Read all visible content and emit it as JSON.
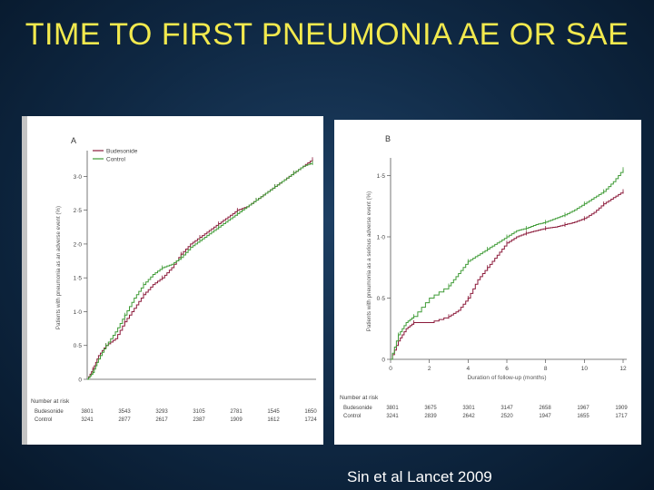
{
  "slide": {
    "title": "TIME TO FIRST PNEUMONIA AE  OR SAE",
    "citation": "Sin et al Lancet 2009"
  },
  "colors": {
    "budesonide": "#8b1a3a",
    "control": "#3f9b36",
    "title": "#f2e94e"
  },
  "chart_data": [
    {
      "type": "line",
      "panel_label": "A",
      "ylabel": "Patients with pneumonia as an adverse event (%)",
      "xlabel": "",
      "ylim": [
        0,
        3.3
      ],
      "yticks": [
        0,
        0.5,
        1.0,
        1.5,
        2.0,
        2.5,
        3.0
      ],
      "ytick_labels": [
        "0",
        "0·5",
        "1·0",
        "1·5",
        "2·0",
        "2·5",
        "3·0"
      ],
      "xlim": [
        0,
        12
      ],
      "legend": {
        "placement": "top-left",
        "entries": [
          "Budesonide",
          "Control"
        ]
      },
      "series": [
        {
          "name": "Budesonide",
          "x": [
            0,
            0.3,
            0.6,
            1,
            1.5,
            2,
            2.5,
            3,
            3.5,
            4,
            4.5,
            5,
            5.5,
            6,
            6.5,
            7,
            7.5,
            8,
            8.5,
            9,
            9.5,
            10,
            10.5,
            11,
            11.5,
            12
          ],
          "y": [
            0,
            0.15,
            0.35,
            0.5,
            0.6,
            0.85,
            1.05,
            1.25,
            1.4,
            1.5,
            1.65,
            1.85,
            2.0,
            2.1,
            2.2,
            2.3,
            2.4,
            2.5,
            2.55,
            2.65,
            2.75,
            2.85,
            2.95,
            3.05,
            3.15,
            3.25
          ]
        },
        {
          "name": "Control",
          "x": [
            0,
            0.3,
            0.6,
            1,
            1.5,
            2,
            2.5,
            3,
            3.5,
            4,
            4.5,
            5,
            5.5,
            6,
            6.5,
            7,
            7.5,
            8,
            8.5,
            9,
            9.5,
            10,
            10.5,
            11,
            11.5,
            12
          ],
          "y": [
            0,
            0.1,
            0.3,
            0.5,
            0.7,
            0.95,
            1.2,
            1.4,
            1.55,
            1.65,
            1.7,
            1.8,
            1.95,
            2.05,
            2.15,
            2.25,
            2.35,
            2.45,
            2.55,
            2.65,
            2.75,
            2.85,
            2.95,
            3.05,
            3.15,
            3.2
          ]
        }
      ],
      "risk_table": {
        "title": "Number at risk",
        "rows": [
          {
            "label": "Budesonide",
            "values": [
              "3801",
              "3543",
              "3293",
              "3105",
              "2781",
              "1545",
              "1650"
            ]
          },
          {
            "label": "Control",
            "values": [
              "3241",
              "2877",
              "2617",
              "2387",
              "1909",
              "1612",
              "1724"
            ]
          }
        ]
      }
    },
    {
      "type": "line",
      "panel_label": "B",
      "ylabel": "Patients with pneumonia as a serious adverse event (%)",
      "xlabel": "Duration of follow-up (months)",
      "ylim": [
        0,
        1.6
      ],
      "yticks": [
        0,
        0.5,
        1.0,
        1.5
      ],
      "ytick_labels": [
        "0",
        "0·5",
        "1·0",
        "1·5"
      ],
      "xlim": [
        0,
        12
      ],
      "xticks": [
        0,
        2,
        4,
        6,
        8,
        10,
        12
      ],
      "xtick_labels": [
        "0",
        "2",
        "4",
        "6",
        "8",
        "10",
        "12"
      ],
      "series": [
        {
          "name": "Budesonide",
          "x": [
            0,
            0.4,
            0.8,
            1.2,
            2,
            3,
            3.5,
            4,
            4.5,
            5,
            5.5,
            6,
            6.5,
            7,
            7.5,
            8,
            8.5,
            9,
            9.5,
            10,
            10.5,
            11,
            11.5,
            12
          ],
          "y": [
            0,
            0.15,
            0.25,
            0.3,
            0.3,
            0.35,
            0.4,
            0.5,
            0.65,
            0.75,
            0.85,
            0.95,
            1.0,
            1.03,
            1.05,
            1.07,
            1.08,
            1.1,
            1.12,
            1.15,
            1.2,
            1.27,
            1.32,
            1.37
          ]
        },
        {
          "name": "Control",
          "x": [
            0,
            0.4,
            0.8,
            1.2,
            2,
            3,
            3.5,
            4,
            4.5,
            5,
            5.5,
            6,
            6.5,
            7,
            7.5,
            8,
            8.5,
            9,
            9.5,
            10,
            10.5,
            11,
            11.5,
            12
          ],
          "y": [
            0,
            0.2,
            0.3,
            0.35,
            0.5,
            0.6,
            0.7,
            0.8,
            0.85,
            0.9,
            0.95,
            1.0,
            1.05,
            1.07,
            1.1,
            1.12,
            1.15,
            1.18,
            1.22,
            1.27,
            1.32,
            1.37,
            1.45,
            1.55
          ]
        }
      ],
      "risk_table": {
        "title": "Number at risk",
        "rows": [
          {
            "label": "Budesonide",
            "values": [
              "3801",
              "3675",
              "3301",
              "3147",
              "2658",
              "1967",
              "1909"
            ]
          },
          {
            "label": "Control",
            "values": [
              "3241",
              "2839",
              "2642",
              "2520",
              "1947",
              "1655",
              "1717"
            ]
          }
        ]
      }
    }
  ]
}
